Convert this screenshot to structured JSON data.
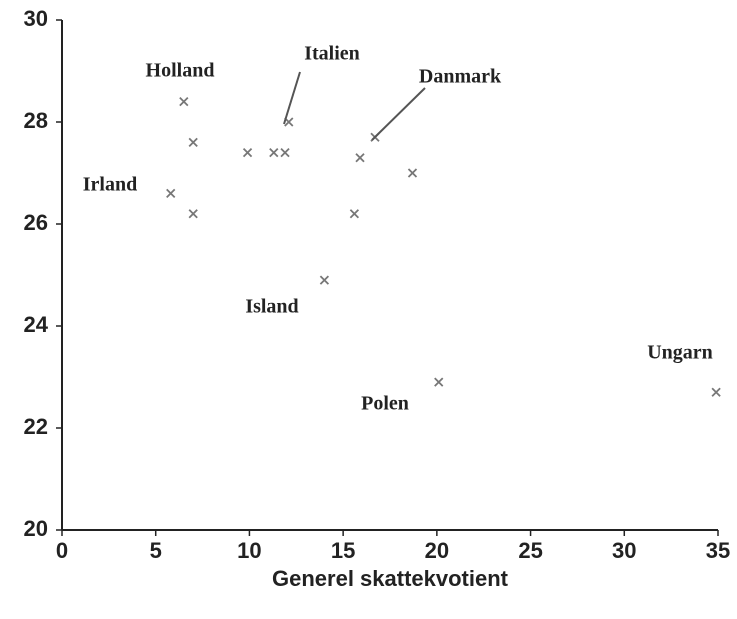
{
  "chart_data": {
    "type": "scatter",
    "x_label": "Generel skattekvotient",
    "x": [
      6.5,
      7.0,
      5.8,
      7.0,
      9.9,
      11.3,
      11.9,
      12.1,
      15.9,
      16.7,
      18.7,
      15.6,
      14.0,
      20.1,
      34.9
    ],
    "values": [
      28.4,
      27.6,
      26.6,
      26.2,
      27.4,
      27.4,
      27.4,
      28.0,
      27.3,
      27.7,
      27.0,
      26.2,
      24.9,
      22.9,
      22.7
    ],
    "color": "#777777",
    "xlim": [
      0,
      35
    ],
    "ylim": [
      20,
      30
    ],
    "xticks": [
      0,
      5,
      10,
      15,
      20,
      25,
      30,
      35
    ],
    "yticks": [
      20,
      22,
      24,
      26,
      28,
      30
    ],
    "annotations": [
      "Holland",
      "Italien",
      "Danmark",
      "Irland",
      "Island",
      "Polen",
      "Ungarn"
    ]
  }
}
